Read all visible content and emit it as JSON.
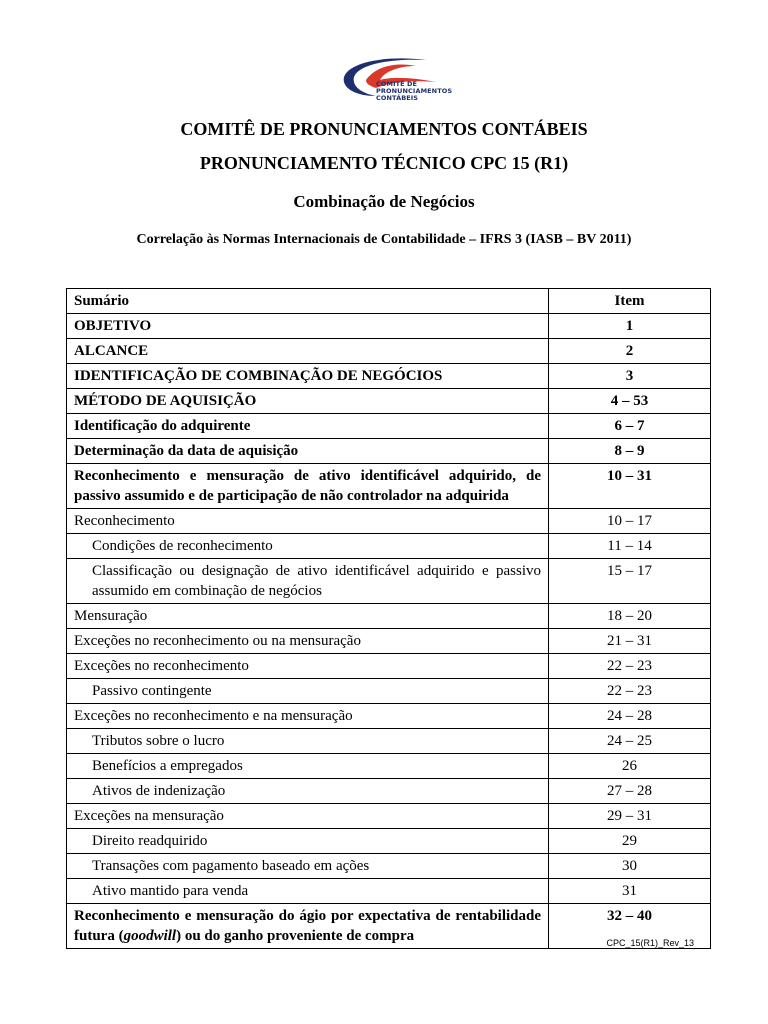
{
  "logo": {
    "text_lines": [
      "COMITÊ DE",
      "PRONUNCIAMENTOS",
      "CONTÁBEIS"
    ],
    "colors": {
      "blue": "#1f2f6e",
      "red": "#d9382b"
    }
  },
  "header": {
    "org": "COMITÊ DE PRONUNCIAMENTOS CONTÁBEIS",
    "pronouncement": "PRONUNCIAMENTO TÉCNICO CPC 15 (R1)",
    "subject": "Combinação de Negócios",
    "correlation": "Correlação às Normas Internacionais de Contabilidade – IFRS 3 (IASB – BV 2011)"
  },
  "table": {
    "columns": [
      "Sumário",
      "Item"
    ],
    "rows": [
      {
        "text": "OBJETIVO",
        "item": "1",
        "bold": true
      },
      {
        "text": "ALCANCE",
        "item": "2",
        "bold": true
      },
      {
        "text": "IDENTIFICAÇÃO DE COMBINAÇÃO DE NEGÓCIOS",
        "item": "3",
        "bold": true
      },
      {
        "text": "MÉTODO DE AQUISIÇÃO",
        "item": "4 – 53",
        "bold": true
      },
      {
        "text": "Identificação do adquirente",
        "item": "6 – 7",
        "bold": true
      },
      {
        "text": "Determinação da data de aquisição",
        "item": "8 – 9",
        "bold": true
      },
      {
        "text": "Reconhecimento e mensuração de ativo identificável adquirido, de passivo assumido e de participação de não controlador na adquirida",
        "item": "10 – 31",
        "bold": true,
        "double": true
      },
      {
        "text": "Reconhecimento",
        "item": "10 – 17"
      },
      {
        "text": "Condições de reconhecimento",
        "item": "11 – 14",
        "indent": true
      },
      {
        "text": "Classificação ou designação de ativo identificável adquirido e passivo assumido em combinação de negócios",
        "item": "15 – 17",
        "indent": true,
        "double": true
      },
      {
        "text": "Mensuração",
        "item": "18 – 20"
      },
      {
        "text": "Exceções no reconhecimento ou na mensuração",
        "item": "21 – 31"
      },
      {
        "text": "Exceções no reconhecimento",
        "item": "22 – 23"
      },
      {
        "text": "Passivo contingente",
        "item": "22 – 23",
        "indent": true
      },
      {
        "text": "Exceções no reconhecimento e na mensuração",
        "item": "24 – 28"
      },
      {
        "text": "Tributos sobre o lucro",
        "item": "24 – 25",
        "indent": true
      },
      {
        "text": "Benefícios a empregados",
        "item": "26",
        "indent": true
      },
      {
        "text": "Ativos de indenização",
        "item": "27 – 28",
        "indent": true
      },
      {
        "text": "Exceções na mensuração",
        "item": "29 – 31"
      },
      {
        "text": "Direito readquirido",
        "item": "29",
        "indent": true
      },
      {
        "text": "Transações com pagamento baseado em ações",
        "item": "30",
        "indent": true
      },
      {
        "text": "Ativo mantido para venda",
        "item": "31",
        "indent": true
      },
      {
        "text": "Reconhecimento e mensuração do ágio por expectativa de rentabilidade futura (",
        "italic": "goodwill",
        "post": ") ou do ganho proveniente de compra",
        "item": "32 – 40",
        "bold": true,
        "double": true
      }
    ]
  },
  "footer": {
    "code": "CPC_15(R1)_Rev_13"
  }
}
